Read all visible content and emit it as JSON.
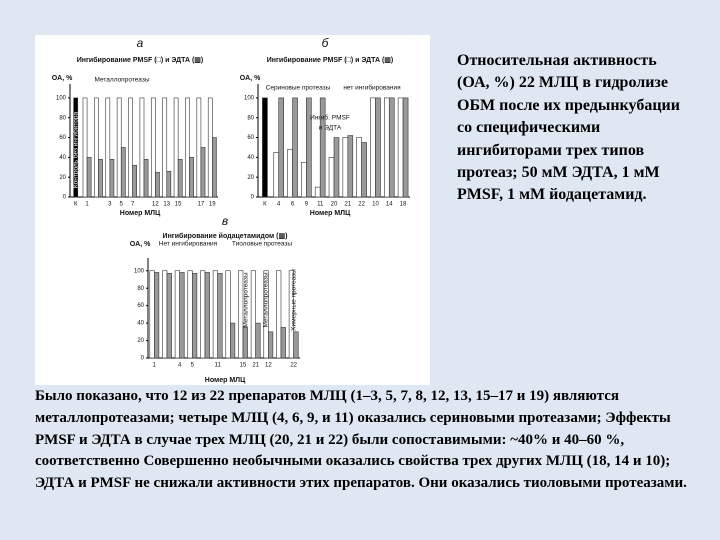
{
  "chart_data": [
    {
      "type": "bar",
      "label": "а",
      "title": "Ингибирование PMSF (□) и ЭДТА (▥)",
      "y_label": "OA, %",
      "x_label": "Номер МЛЦ",
      "annotations": [
        "Металлопротеазы",
        "Контроль без ингибитора"
      ],
      "categories": [
        "К",
        "1",
        null,
        "3",
        "5",
        "7",
        null,
        "12",
        "13",
        "15",
        null,
        "17",
        "19"
      ],
      "series": [
        {
          "color": "#000000",
          "values": [
            100,
            null,
            null,
            null,
            null,
            null,
            null,
            null,
            null,
            null,
            null,
            null,
            null
          ]
        },
        {
          "color": "#ffffff",
          "values": [
            null,
            100,
            100,
            100,
            100,
            100,
            100,
            100,
            100,
            100,
            100,
            100,
            100
          ]
        },
        {
          "color": "#9a9a9a",
          "values": [
            null,
            40,
            38,
            38,
            50,
            32,
            38,
            25,
            26,
            38,
            40,
            50,
            60
          ]
        }
      ],
      "ylim": [
        0,
        110
      ],
      "yticks": [
        0,
        20,
        40,
        60,
        80,
        100
      ]
    },
    {
      "type": "bar",
      "label": "б",
      "title": "Ингибирование PMSF (□) и ЭДТА (▥)",
      "y_label": "OA, %",
      "x_label": "Номер МЛЦ",
      "annotations": [
        "Сериновые протеазы",
        "нет ингибирования",
        "Ингиб. PMSF",
        "и ЭДТА"
      ],
      "categories": [
        "К",
        "4",
        "6",
        "9",
        "11",
        "20",
        "21",
        "22",
        "10",
        "14",
        "18"
      ],
      "series": [
        {
          "color": "#000000",
          "values": [
            100,
            null,
            null,
            null,
            null,
            null,
            null,
            null,
            null,
            null,
            null
          ]
        },
        {
          "color": "#ffffff",
          "values": [
            null,
            45,
            48,
            35,
            10,
            40,
            60,
            60,
            100,
            100,
            100
          ]
        },
        {
          "color": "#9a9a9a",
          "values": [
            null,
            100,
            100,
            100,
            100,
            60,
            62,
            55,
            100,
            100,
            100
          ]
        }
      ],
      "ylim": [
        0,
        110
      ],
      "yticks": [
        0,
        20,
        40,
        60,
        80,
        100
      ]
    },
    {
      "type": "bar",
      "label": "в",
      "title": "Ингибирование йодацетамидом (▥)",
      "y_label": "OA, %",
      "x_label": "Номер МЛЦ",
      "annotations": [
        "Нет ингибирования",
        "Тиоловые протеазы",
        "Металлопротеазы",
        "Металлопротеазы",
        "Химерные протеазы"
      ],
      "categories": [
        "1",
        null,
        "4",
        "5",
        null,
        "11",
        null,
        "15",
        "21",
        "12",
        null,
        "22"
      ],
      "series": [
        {
          "color": "#ffffff",
          "values": [
            100,
            100,
            100,
            100,
            100,
            100,
            100,
            100,
            100,
            100,
            100,
            100
          ]
        },
        {
          "color": "#9a9a9a",
          "values": [
            98,
            97,
            98,
            97,
            98,
            97,
            40,
            35,
            40,
            30,
            35,
            30
          ]
        }
      ],
      "ylim": [
        0,
        110
      ],
      "yticks": [
        0,
        20,
        40,
        60,
        80,
        100
      ]
    }
  ],
  "side_text": "Относительная активность (ОА, %) 22 МЛЦ в гидролизе ОБМ после их предынкубации со специфическими ингибиторами трех типов протеаз; 50 мМ ЭДТА, 1 мМ PMSF, 1 мМ йодацетамид.",
  "bottom_text": "Было показано, что 12 из 22 препаратов МЛЦ (1–3, 5, 7, 8, 12, 13, 15–17 и 19) являются металлопротеазами; четыре МЛЦ (4, 6, 9, и 11) оказались сериновыми протеазами; Эффекты PMSF и ЭДТА в случае трех МЛЦ (20, 21 и 22) были сопоставимыми: ~40% и 40–60 %, соответственно Совершенно необычными оказались свойства трех других МЛЦ (18, 14 и 10); ЭДТА и PMSF не снижали активности этих препаратов. Они оказались тиоловыми протеазами."
}
